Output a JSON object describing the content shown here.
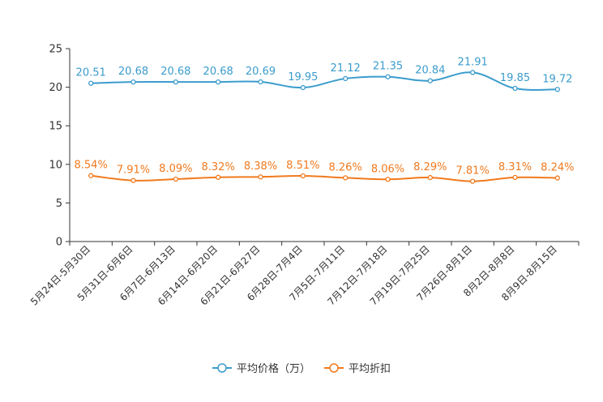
{
  "chart_data": {
    "type": "line",
    "categories": [
      "5月24日-5月30日",
      "5月31日-6月6日",
      "6月7日-6月13日",
      "6月14日-6月20日",
      "6月21日-6月27日",
      "6月28日-7月4日",
      "7月5日-7月11日",
      "7月12日-7月18日",
      "7月19日-7月25日",
      "7月26日-8月1日",
      "8月2日-8月8日",
      "8月9日-8月15日"
    ],
    "ylim": [
      0,
      25
    ],
    "yticks": [
      0,
      5,
      10,
      15,
      20,
      25
    ],
    "series": [
      {
        "name": "平均价格（万）",
        "color": "#3b9ccc",
        "values": [
          20.51,
          20.68,
          20.68,
          20.68,
          20.69,
          19.95,
          21.12,
          21.35,
          20.84,
          21.91,
          19.85,
          19.72
        ],
        "labels": [
          "20.51",
          "20.68",
          "20.68",
          "20.68",
          "20.69",
          "19.95",
          "21.12",
          "21.35",
          "20.84",
          "21.91",
          "19.85",
          "19.72"
        ]
      },
      {
        "name": "平均折扣",
        "color": "#f07a1e",
        "values": [
          8.54,
          7.91,
          8.09,
          8.32,
          8.38,
          8.51,
          8.26,
          8.06,
          8.29,
          7.81,
          8.31,
          8.24
        ],
        "labels": [
          "8.54%",
          "7.91%",
          "8.09%",
          "8.32%",
          "8.38%",
          "8.51%",
          "8.26%",
          "8.06%",
          "8.29%",
          "7.81%",
          "8.31%",
          "8.24%"
        ]
      }
    ],
    "legend_position": "bottom-center",
    "grid": false
  }
}
